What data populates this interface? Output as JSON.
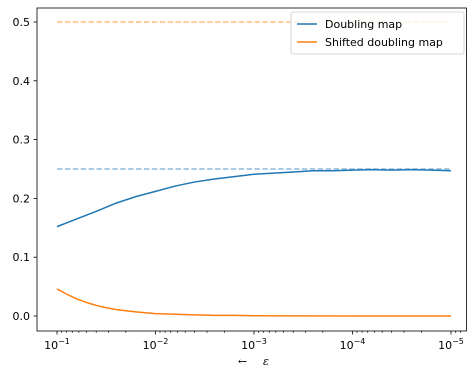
{
  "chart_data": {
    "type": "line",
    "xscale": "log",
    "x_reversed": true,
    "xlim": [
      0.1,
      1e-05
    ],
    "ylim": [
      0.0,
      0.5
    ],
    "xlabel_arrow": "←",
    "xlabel": "ε",
    "xticks": [
      {
        "value": 0.1,
        "base": "10",
        "exp": "−1"
      },
      {
        "value": 0.01,
        "base": "10",
        "exp": "−2"
      },
      {
        "value": 0.001,
        "base": "10",
        "exp": "−3"
      },
      {
        "value": 0.0001,
        "base": "10",
        "exp": "−4"
      },
      {
        "value": 1e-05,
        "base": "10",
        "exp": "−5"
      }
    ],
    "yticks": [
      {
        "value": 0.0,
        "label": "0.0"
      },
      {
        "value": 0.1,
        "label": "0.1"
      },
      {
        "value": 0.2,
        "label": "0.2"
      },
      {
        "value": 0.3,
        "label": "0.3"
      },
      {
        "value": 0.4,
        "label": "0.4"
      },
      {
        "value": 0.5,
        "label": "0.5"
      }
    ],
    "legend_position": "top-right",
    "series": [
      {
        "name": "Doubling map",
        "color": "#1f77b4",
        "x_log10": [
          -1.0,
          -1.2,
          -1.4,
          -1.6,
          -1.8,
          -2.0,
          -2.2,
          -2.4,
          -2.6,
          -2.8,
          -3.0,
          -3.2,
          -3.4,
          -3.6,
          -3.8,
          -4.0,
          -4.2,
          -4.4,
          -4.6,
          -4.8,
          -5.0
        ],
        "y": [
          0.152,
          0.165,
          0.178,
          0.192,
          0.203,
          0.212,
          0.221,
          0.228,
          0.233,
          0.237,
          0.241,
          0.243,
          0.245,
          0.247,
          0.247,
          0.248,
          0.249,
          0.248,
          0.249,
          0.248,
          0.247
        ],
        "reference_level": 0.25
      },
      {
        "name": "Shifted doubling map",
        "color": "#ff7f0e",
        "x_log10": [
          -1.0,
          -1.1,
          -1.2,
          -1.3,
          -1.4,
          -1.5,
          -1.6,
          -1.8,
          -2.0,
          -2.2,
          -2.4,
          -2.6,
          -2.8,
          -3.0,
          -3.5,
          -4.0,
          -4.5,
          -5.0
        ],
        "y": [
          0.046,
          0.037,
          0.029,
          0.023,
          0.018,
          0.014,
          0.011,
          0.007,
          0.004,
          0.003,
          0.002,
          0.001,
          0.001,
          0.0005,
          0.0002,
          0.0001,
          0.0,
          0.0
        ],
        "reference_level": 0.5
      }
    ]
  }
}
